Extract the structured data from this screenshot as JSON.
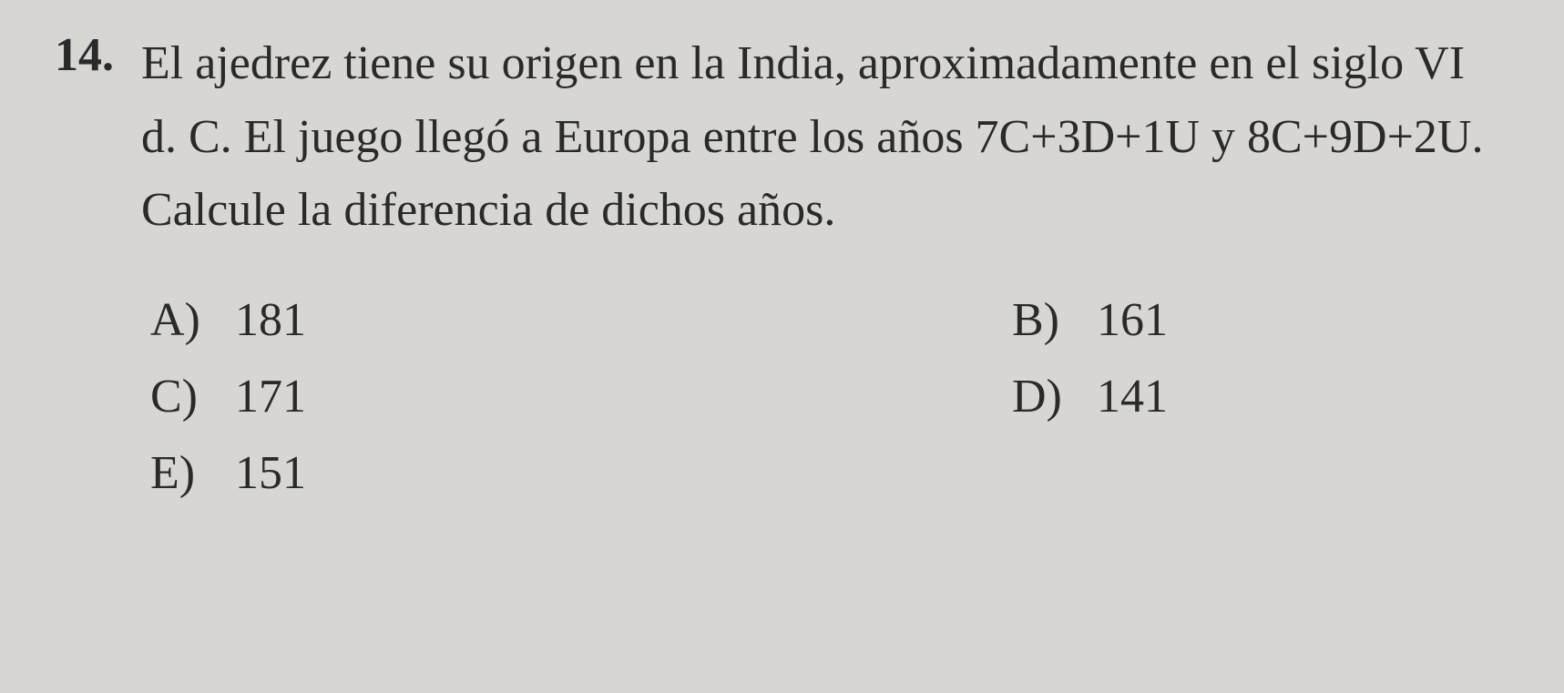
{
  "question": {
    "number": "14.",
    "text": "El ajedrez tiene su origen en la India, aproximadamente en el siglo VI d. C. El juego llegó a Europa entre los años 7C+3D+1U y 8C+9D+2U. Calcule la diferencia de dichos años.",
    "options": {
      "a": {
        "label": "A)",
        "value": "181"
      },
      "b": {
        "label": "B)",
        "value": "161"
      },
      "c": {
        "label": "C)",
        "value": "171"
      },
      "d": {
        "label": "D)",
        "value": "141"
      },
      "e": {
        "label": "E)",
        "value": "151"
      }
    }
  },
  "styling": {
    "background_color": "#d8d6d2",
    "text_color": "#2a2a2a",
    "font_size_main": 52,
    "font_family": "Georgia, Times New Roman, serif",
    "line_height": 1.55
  }
}
